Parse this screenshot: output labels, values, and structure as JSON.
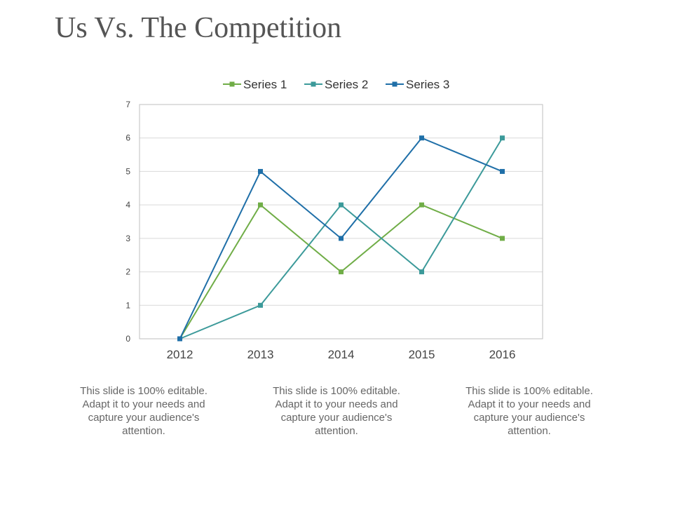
{
  "title": "Us Vs. The Competition",
  "chart_data": {
    "type": "line",
    "title": "",
    "xlabel": "",
    "ylabel": "",
    "categories": [
      "2012",
      "2013",
      "2014",
      "2015",
      "2016"
    ],
    "ylim": [
      0,
      7
    ],
    "yticks": [
      "0",
      "1",
      "2",
      "3",
      "4",
      "5",
      "6",
      "7"
    ],
    "grid": true,
    "legend_position": "top",
    "series": [
      {
        "name": "Series 1",
        "color": "#70ad47",
        "values": [
          0,
          4,
          2,
          4,
          3
        ]
      },
      {
        "name": "Series 2",
        "color": "#3c9a9a",
        "values": [
          0,
          1,
          4,
          2,
          6
        ]
      },
      {
        "name": "Series 3",
        "color": "#1f6fa8",
        "values": [
          0,
          5,
          3,
          6,
          5
        ]
      }
    ]
  },
  "captions": [
    "This slide is 100% editable. Adapt it to your needs and capture your audience's attention.",
    "This slide is 100% editable. Adapt it to your needs and capture your audience's attention.",
    "This slide is 100% editable. Adapt it to your needs and capture your audience's attention."
  ]
}
